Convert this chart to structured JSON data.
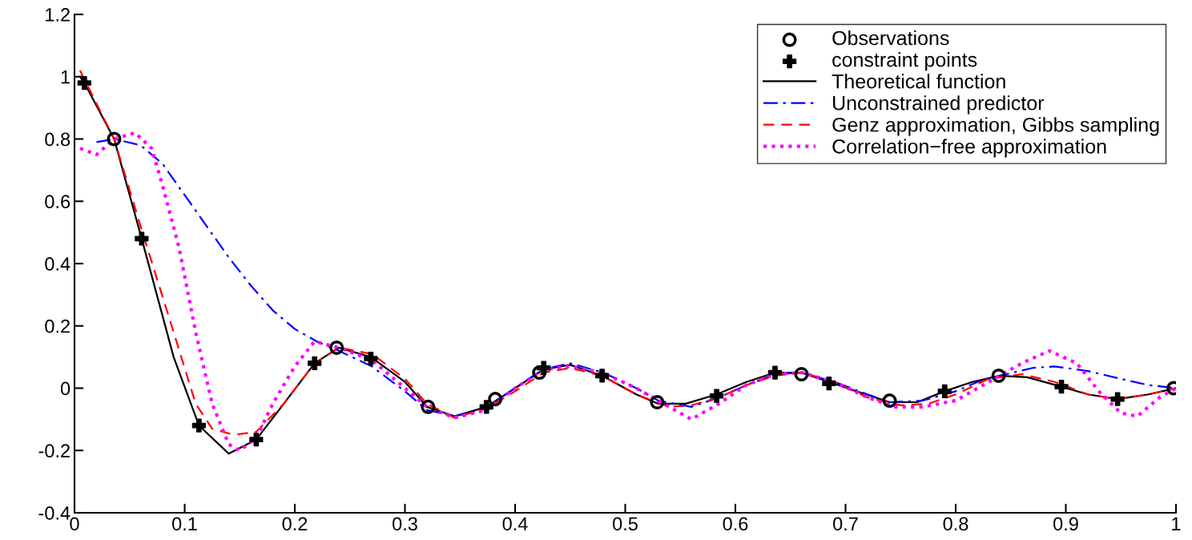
{
  "chart_data": {
    "type": "line",
    "xlim": [
      0,
      1
    ],
    "ylim": [
      -0.4,
      1.2
    ],
    "xticks": [
      0,
      0.1,
      0.2,
      0.3,
      0.4,
      0.5,
      0.6,
      0.7,
      0.8,
      0.9,
      1
    ],
    "yticks": [
      -0.4,
      -0.2,
      0,
      0.2,
      0.4,
      0.6,
      0.8,
      1,
      1.2
    ],
    "grid": false,
    "legend": "top right",
    "series": [
      {
        "name": "Observations",
        "type": "scatter",
        "marker": "circle",
        "color": "#000000",
        "x": [
          0.036,
          0.238,
          0.321,
          0.382,
          0.422,
          0.529,
          0.66,
          0.74,
          0.839,
          0.998
        ],
        "values": [
          0.8,
          0.13,
          -0.06,
          -0.035,
          0.05,
          -0.045,
          0.045,
          -0.04,
          0.04,
          0
        ]
      },
      {
        "name": "constraint points",
        "type": "scatter",
        "marker": "cross",
        "color": "#000000",
        "x": [
          0.009,
          0.061,
          0.113,
          0.165,
          0.218,
          0.269,
          0.374,
          0.426,
          0.479,
          0.583,
          0.636,
          0.685,
          0.79,
          0.896,
          0.947
        ],
        "values": [
          0.98,
          0.48,
          -0.12,
          -0.165,
          0.08,
          0.095,
          -0.06,
          0.065,
          0.04,
          -0.025,
          0.05,
          0.015,
          -0.01,
          0.005,
          -0.035
        ]
      },
      {
        "name": "Theoretical function",
        "line_style": "solid",
        "color": "#000000",
        "x": [
          0.005,
          0.009,
          0.036,
          0.061,
          0.09,
          0.113,
          0.14,
          0.165,
          0.19,
          0.218,
          0.24,
          0.269,
          0.3,
          0.32,
          0.345,
          0.374,
          0.4,
          0.426,
          0.45,
          0.479,
          0.51,
          0.53,
          0.555,
          0.583,
          0.61,
          0.636,
          0.66,
          0.685,
          0.71,
          0.74,
          0.765,
          0.79,
          0.815,
          0.84,
          0.865,
          0.896,
          0.92,
          0.947,
          0.975,
          1.0
        ],
        "values": [
          1.0,
          0.98,
          0.8,
          0.48,
          0.1,
          -0.12,
          -0.21,
          -0.165,
          -0.05,
          0.08,
          0.13,
          0.1,
          0.02,
          -0.06,
          -0.09,
          -0.06,
          0.0,
          0.06,
          0.075,
          0.04,
          -0.02,
          -0.05,
          -0.05,
          -0.02,
          0.02,
          0.05,
          0.05,
          0.02,
          -0.01,
          -0.045,
          -0.045,
          -0.01,
          0.02,
          0.04,
          0.035,
          0.005,
          -0.02,
          -0.035,
          -0.02,
          0.0
        ]
      },
      {
        "name": "Unconstrained predictor",
        "line_style": "dashdot",
        "color": "#0000ff",
        "x": [
          0.02,
          0.036,
          0.06,
          0.08,
          0.1,
          0.12,
          0.14,
          0.16,
          0.18,
          0.2,
          0.22,
          0.24,
          0.27,
          0.3,
          0.32,
          0.345,
          0.37,
          0.4,
          0.425,
          0.45,
          0.48,
          0.51,
          0.53,
          0.56,
          0.585,
          0.61,
          0.636,
          0.66,
          0.69,
          0.72,
          0.74,
          0.77,
          0.8,
          0.82,
          0.84,
          0.87,
          0.89,
          0.92,
          0.95,
          0.975,
          1.0
        ],
        "values": [
          0.79,
          0.8,
          0.78,
          0.72,
          0.62,
          0.52,
          0.42,
          0.33,
          0.25,
          0.19,
          0.15,
          0.12,
          0.07,
          -0.01,
          -0.07,
          -0.09,
          -0.07,
          0.0,
          0.06,
          0.08,
          0.05,
          0.0,
          -0.04,
          -0.06,
          -0.03,
          0.01,
          0.045,
          0.05,
          0.02,
          -0.02,
          -0.045,
          -0.04,
          -0.01,
          0.02,
          0.04,
          0.065,
          0.07,
          0.055,
          0.03,
          0.01,
          0.0
        ]
      },
      {
        "name": "Genz approximation, Gibbs sampling",
        "line_style": "dashed",
        "color": "#ff0000",
        "x": [
          0.005,
          0.036,
          0.06,
          0.09,
          0.11,
          0.125,
          0.145,
          0.165,
          0.19,
          0.218,
          0.24,
          0.27,
          0.3,
          0.32,
          0.345,
          0.374,
          0.4,
          0.426,
          0.45,
          0.479,
          0.51,
          0.54,
          0.56,
          0.585,
          0.61,
          0.636,
          0.66,
          0.69,
          0.72,
          0.75,
          0.775,
          0.8,
          0.83,
          0.86,
          0.89,
          0.92,
          0.947,
          0.975,
          1.0
        ],
        "values": [
          1.02,
          0.8,
          0.52,
          0.18,
          -0.05,
          -0.13,
          -0.15,
          -0.14,
          -0.05,
          0.08,
          0.13,
          0.11,
          0.03,
          -0.05,
          -0.095,
          -0.065,
          -0.01,
          0.05,
          0.065,
          0.04,
          -0.02,
          -0.06,
          -0.055,
          -0.03,
          0.01,
          0.04,
          0.05,
          0.02,
          -0.03,
          -0.055,
          -0.05,
          -0.02,
          0.03,
          0.045,
          0.02,
          -0.02,
          -0.035,
          -0.02,
          0.0
        ]
      },
      {
        "name": "Correlation−free approximation",
        "line_style": "dotted",
        "color": "#ff00ff",
        "x": [
          0.005,
          0.02,
          0.036,
          0.055,
          0.07,
          0.08,
          0.095,
          0.11,
          0.125,
          0.14,
          0.15,
          0.165,
          0.18,
          0.2,
          0.218,
          0.24,
          0.27,
          0.3,
          0.32,
          0.345,
          0.374,
          0.4,
          0.426,
          0.45,
          0.479,
          0.51,
          0.54,
          0.56,
          0.585,
          0.61,
          0.636,
          0.66,
          0.69,
          0.72,
          0.745,
          0.77,
          0.8,
          0.83,
          0.86,
          0.885,
          0.91,
          0.93,
          0.95,
          0.965,
          0.985,
          1.0
        ],
        "values": [
          0.77,
          0.75,
          0.8,
          0.82,
          0.77,
          0.65,
          0.45,
          0.18,
          -0.05,
          -0.18,
          -0.2,
          -0.16,
          -0.05,
          0.07,
          0.15,
          0.13,
          0.09,
          0.0,
          -0.06,
          -0.095,
          -0.07,
          0.0,
          0.06,
          0.07,
          0.05,
          0.0,
          -0.06,
          -0.1,
          -0.05,
          0.01,
          0.045,
          0.05,
          0.02,
          -0.03,
          -0.06,
          -0.06,
          -0.04,
          0.02,
          0.08,
          0.12,
          0.08,
          -0.01,
          -0.08,
          -0.09,
          -0.03,
          0.0
        ]
      }
    ]
  }
}
